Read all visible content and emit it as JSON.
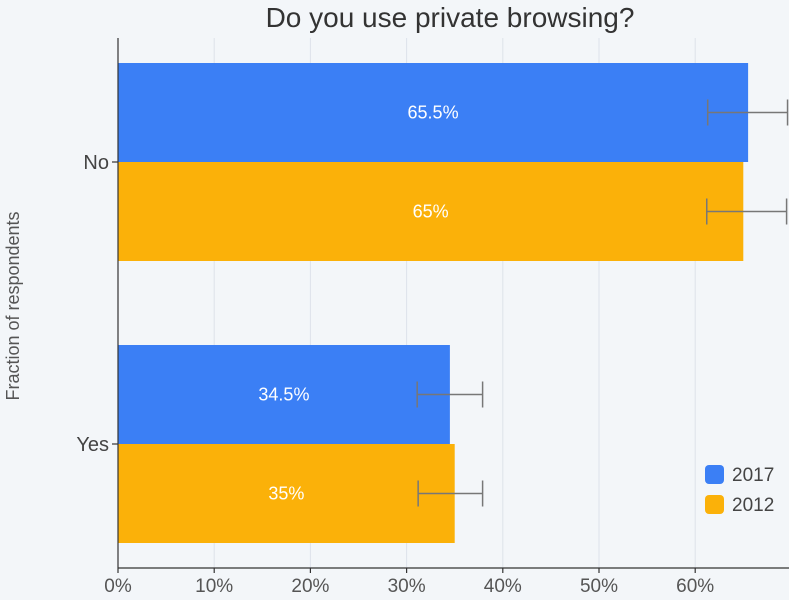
{
  "chart_data": {
    "type": "bar",
    "orientation": "horizontal",
    "title": "Do you use private browsing?",
    "xlabel": "",
    "ylabel": "Fraction of respondents",
    "categories": [
      "No",
      "Yes"
    ],
    "series": [
      {
        "name": "2017",
        "color": "#3b7ff5",
        "values": [
          65.5,
          34.5
        ],
        "labels": [
          "65.5%",
          "34.5%"
        ],
        "error_low": [
          61.3,
          31.1
        ],
        "error_high": [
          69.6,
          37.9
        ]
      },
      {
        "name": "2012",
        "color": "#fbb109",
        "values": [
          65,
          35
        ],
        "labels": [
          "65%",
          "35%"
        ],
        "error_low": [
          61.2,
          31.2
        ],
        "error_high": [
          69.5,
          37.9
        ]
      }
    ],
    "xlim": [
      0,
      70
    ],
    "xticks": [
      0,
      10,
      20,
      30,
      40,
      50,
      60
    ],
    "xtick_labels": [
      "0%",
      "10%",
      "20%",
      "30%",
      "40%",
      "50%",
      "60%"
    ],
    "grid": true,
    "legend_position": "bottom-right"
  }
}
